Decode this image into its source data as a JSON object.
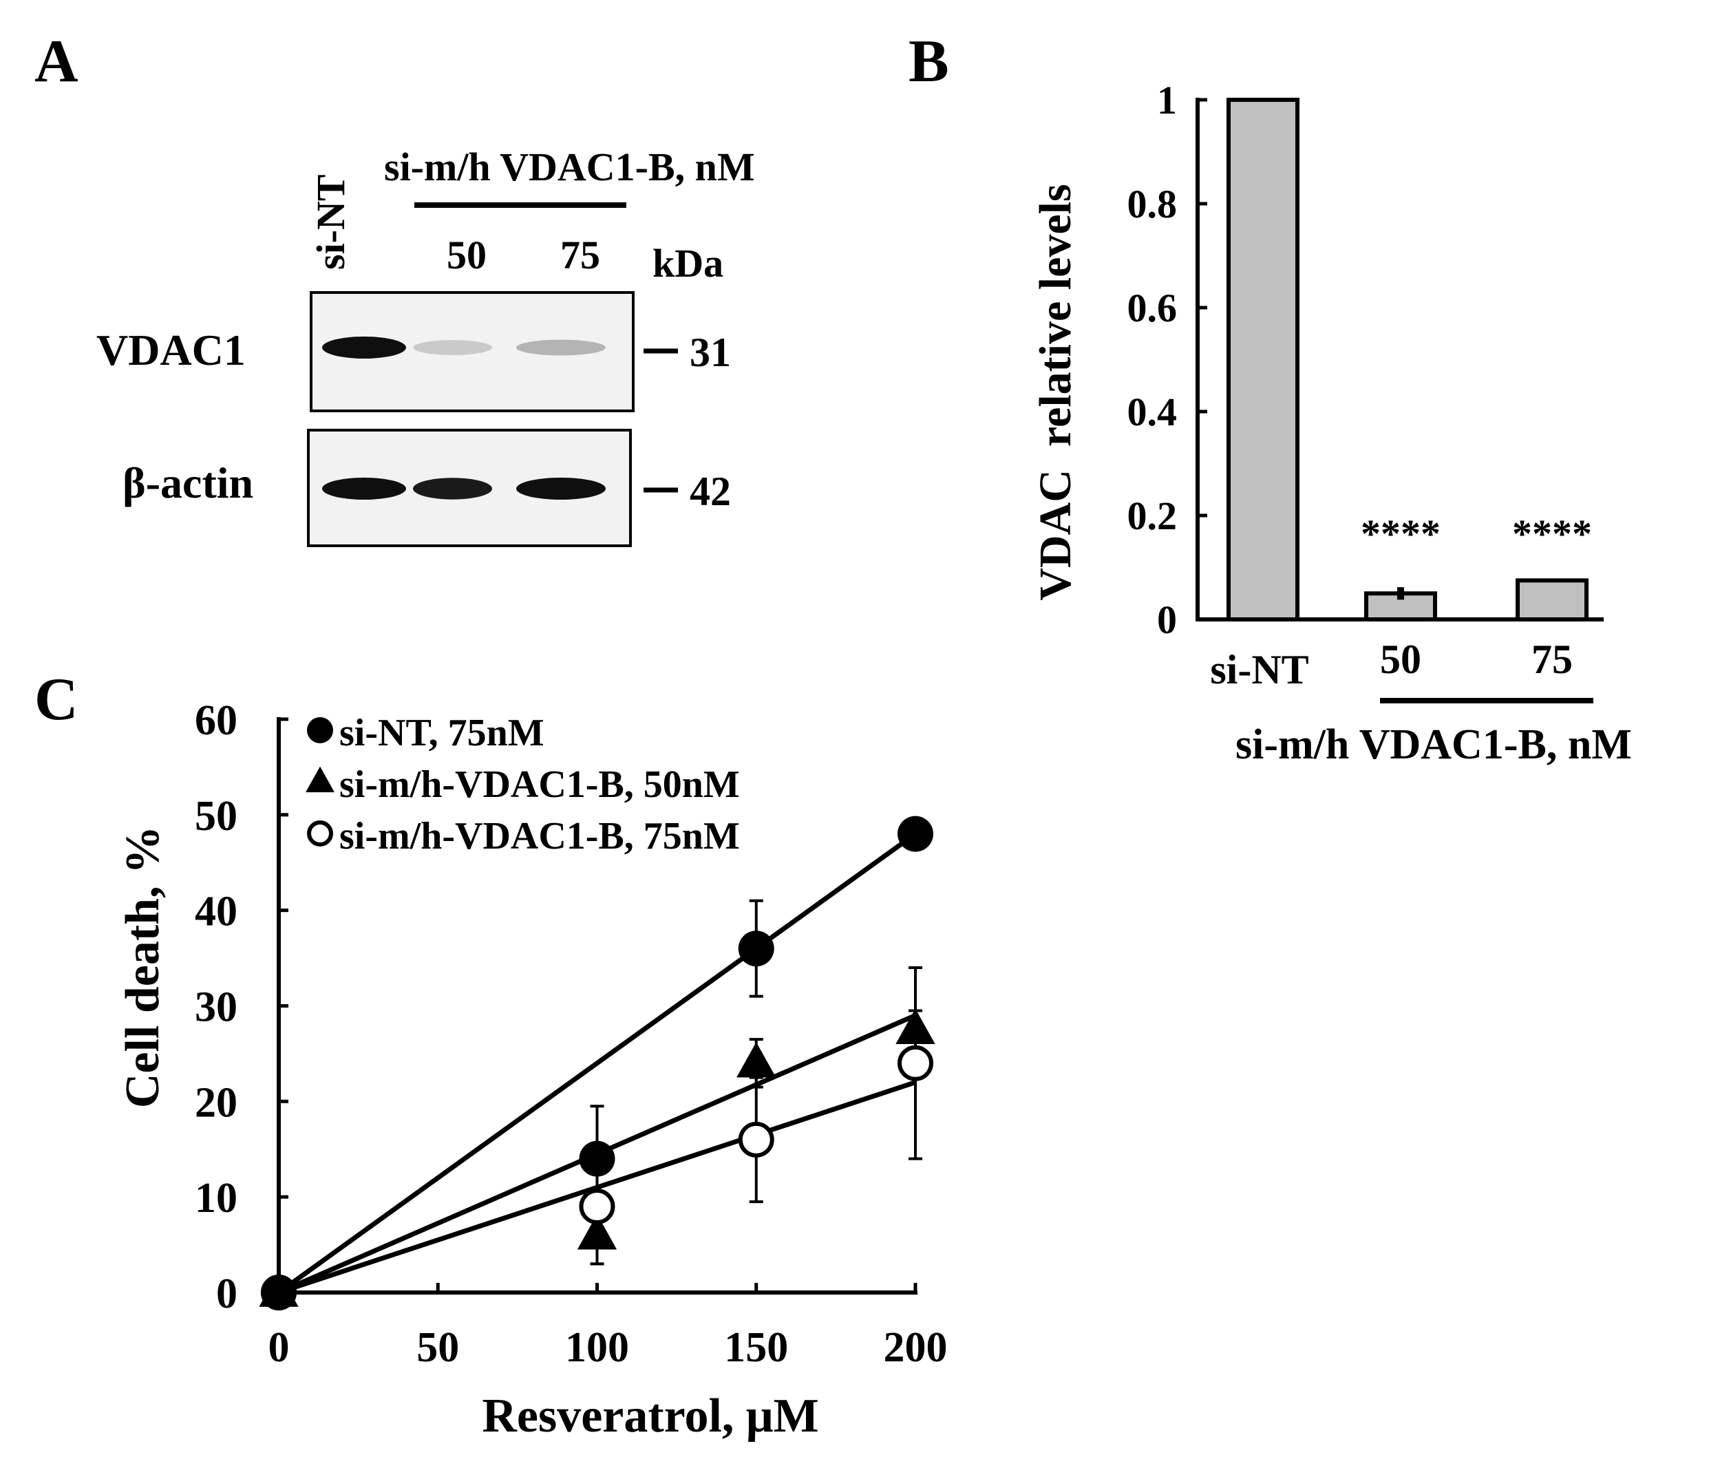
{
  "panels": {
    "a": "A",
    "b": "B",
    "c": "C"
  },
  "blot": {
    "header_lane": "si-NT",
    "treatment": "si-m/h VDAC1-B, nM",
    "doses": [
      "50",
      "75"
    ],
    "unit": "kDa",
    "rows": [
      {
        "protein": "VDAC1",
        "kda": "31",
        "band_intensity": [
          1.0,
          0.15,
          0.25
        ]
      },
      {
        "protein": "β-actin",
        "kda": "42",
        "band_intensity": [
          1.0,
          0.95,
          1.0
        ]
      }
    ]
  },
  "chart_data": [
    {
      "type": "bar",
      "panel": "B",
      "categories": [
        "si-NT",
        "50",
        "75"
      ],
      "values": [
        1.0,
        0.05,
        0.075
      ],
      "errors": [
        0,
        0.012,
        0
      ],
      "significance": [
        "",
        "****",
        "****"
      ],
      "ylabel": "VDAC  relative levels",
      "group_label": "si-m/h VDAC1-B, nM",
      "ylim": [
        0,
        1
      ],
      "yticks": [
        "0",
        "0.2",
        "0.4",
        "0.6",
        "0.8",
        "1"
      ],
      "bar_color": "#c0c0c0"
    },
    {
      "type": "scatter",
      "panel": "C",
      "xlabel": "Resveratrol, μM",
      "ylabel": "Cell death, %",
      "xlim": [
        0,
        200
      ],
      "ylim": [
        0,
        60
      ],
      "xticks": [
        "0",
        "50",
        "100",
        "150",
        "200"
      ],
      "yticks": [
        "0",
        "10",
        "20",
        "30",
        "40",
        "50",
        "60"
      ],
      "legend_position": "top-left",
      "series": [
        {
          "name": "si-NT, 75nM",
          "marker": "filled-circle",
          "x": [
            0,
            100,
            150,
            200
          ],
          "y": [
            0,
            14,
            36,
            48
          ],
          "err": [
            0,
            5.5,
            5,
            0
          ],
          "fit": [
            [
              0,
              0
            ],
            [
              200,
              48
            ]
          ]
        },
        {
          "name": "si-m/h-VDAC1-B, 50nM",
          "marker": "filled-triangle",
          "x": [
            0,
            100,
            150,
            200
          ],
          "y": [
            0,
            6,
            24,
            27.5
          ],
          "err": [
            0,
            3,
            2.5,
            2
          ],
          "fit": [
            [
              0,
              0
            ],
            [
              200,
              29
            ]
          ]
        },
        {
          "name": "si-m/h-VDAC1-B, 75nM",
          "marker": "open-circle",
          "x": [
            0,
            100,
            150,
            200
          ],
          "y": [
            0,
            9,
            16,
            24
          ],
          "err": [
            0,
            6,
            6.5,
            10
          ],
          "fit": [
            [
              0,
              0
            ],
            [
              200,
              22
            ]
          ]
        }
      ]
    }
  ]
}
